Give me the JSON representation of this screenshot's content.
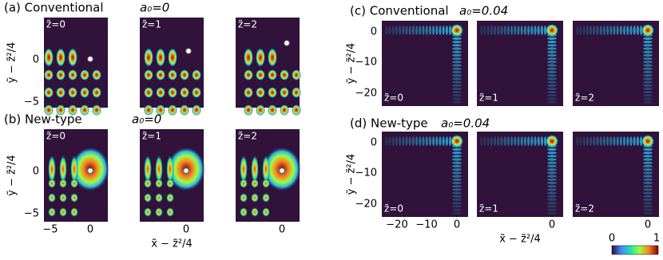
{
  "panels": [
    {
      "label": "(a) Conventional",
      "param": "a₀=0",
      "subplots": [
        "z̃=0",
        "z̃=1",
        "z̃=2"
      ]
    },
    {
      "label": "(b) New-type",
      "param": "a₀=0",
      "subplots": [
        "z̃=0",
        "z̃=1",
        "z̃=2"
      ]
    },
    {
      "label": "(c) Conventional",
      "param": "a₀=0.04",
      "subplots": [
        "z̃=0",
        "z̃=1",
        "z̃=2"
      ]
    },
    {
      "label": "(d) New-type",
      "param": "a₀=0.04",
      "subplots": [
        "z̃=0",
        "z̃=1",
        "z̃=2"
      ]
    }
  ],
  "left_axes": {
    "y_label": "ỹ − z̃²/4",
    "x_label": "x̃ − z̃²/4",
    "yticks": [
      "0",
      "−5"
    ],
    "xticks": [
      "−5",
      "0"
    ]
  },
  "right_axes": {
    "y_label": "ỹ − z̃²/4",
    "x_label": "x̃ − z̃²/4",
    "yticks": [
      "0",
      "−10",
      "−20"
    ],
    "xticks": [
      "−20",
      "−10",
      "0"
    ]
  },
  "colorbar": {
    "ticks": [
      "0",
      "1"
    ]
  }
}
